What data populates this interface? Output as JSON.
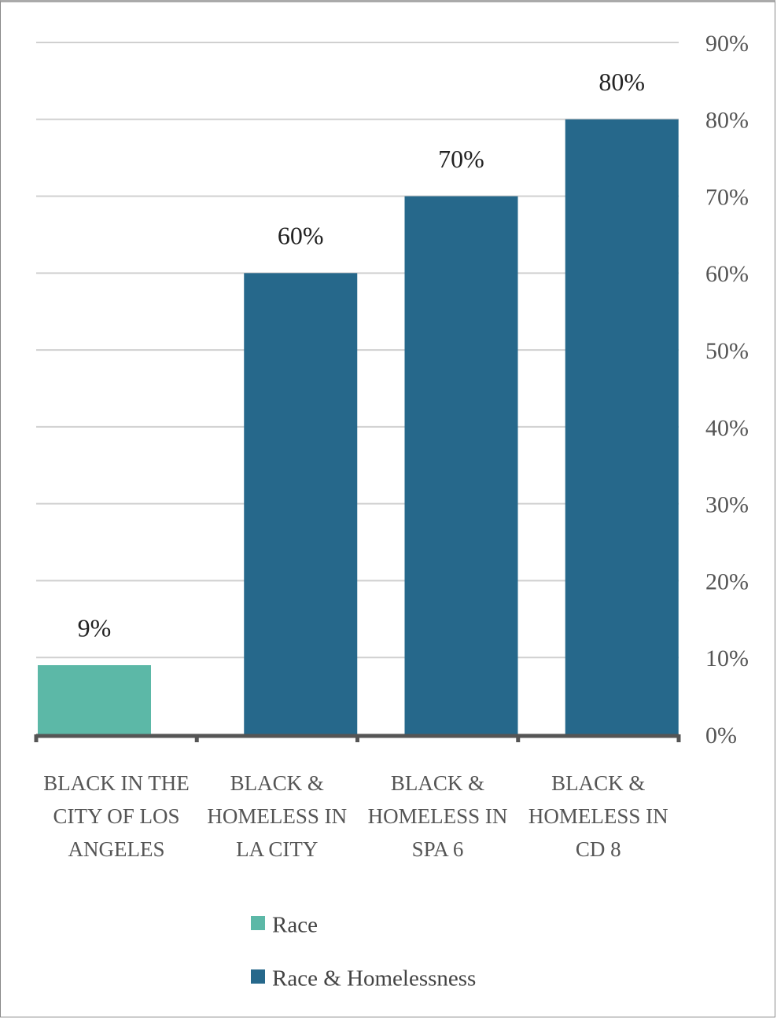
{
  "chart_data": {
    "type": "bar",
    "categories": [
      "BLACK IN THE CITY OF LOS ANGELES",
      "BLACK & HOMELESS IN LA CITY",
      "BLACK & HOMELESS IN SPA 6",
      "BLACK & HOMELESS IN CD 8"
    ],
    "series": [
      {
        "name": "Race",
        "color": "#5cb8a7",
        "values": [
          9,
          null,
          null,
          null
        ],
        "value_labels": [
          "9%",
          null,
          null,
          null
        ]
      },
      {
        "name": "Race & Homelessness",
        "color": "#26688b",
        "values": [
          null,
          60,
          70,
          80
        ],
        "value_labels": [
          null,
          "60%",
          "70%",
          "80%"
        ]
      }
    ],
    "ylim": [
      0,
      90
    ],
    "yticks": [
      {
        "value": 0,
        "label": "0%"
      },
      {
        "value": 10,
        "label": "10%"
      },
      {
        "value": 20,
        "label": "20%"
      },
      {
        "value": 30,
        "label": "30%"
      },
      {
        "value": 40,
        "label": "40%"
      },
      {
        "value": 50,
        "label": "50%"
      },
      {
        "value": 60,
        "label": "60%"
      },
      {
        "value": 70,
        "label": "70%"
      },
      {
        "value": 80,
        "label": "80%"
      },
      {
        "value": 90,
        "label": "90%"
      }
    ],
    "grid": true,
    "y_axis_side": "right",
    "legend": "bottom"
  }
}
